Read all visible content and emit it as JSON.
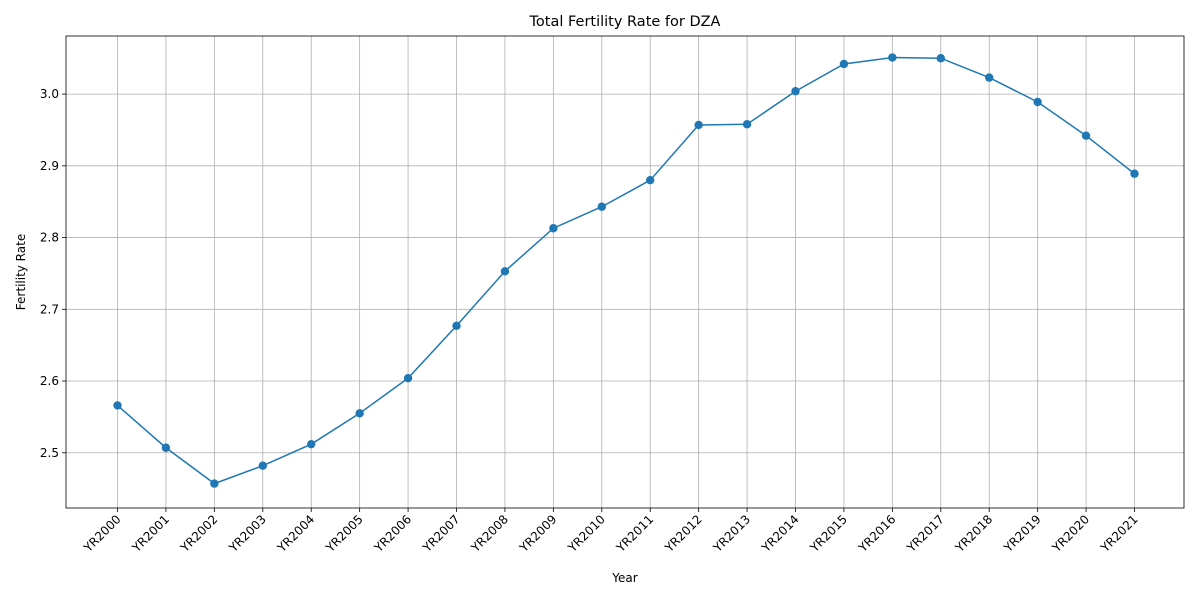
{
  "chart_data": {
    "type": "line",
    "title": "Total Fertility Rate for DZA",
    "xlabel": "Year",
    "ylabel": "Fertility Rate",
    "categories": [
      "YR2000",
      "YR2001",
      "YR2002",
      "YR2003",
      "YR2004",
      "YR2005",
      "YR2006",
      "YR2007",
      "YR2008",
      "YR2009",
      "YR2010",
      "YR2011",
      "YR2012",
      "YR2013",
      "YR2014",
      "YR2015",
      "YR2016",
      "YR2017",
      "YR2018",
      "YR2019",
      "YR2020",
      "YR2021"
    ],
    "series": [
      {
        "values": [
          2.566,
          2.507,
          2.457,
          2.482,
          2.512,
          2.555,
          2.604,
          2.677,
          2.753,
          2.813,
          2.843,
          2.88,
          2.957,
          2.958,
          3.004,
          3.042,
          3.051,
          3.05,
          3.023,
          2.989,
          2.942,
          2.889
        ],
        "color": "#1f77b4"
      }
    ],
    "ylim": [
      2.423,
      3.081
    ],
    "yticks": [
      "2.5",
      "2.6",
      "2.7",
      "2.8",
      "2.9",
      "3.0"
    ],
    "grid": true,
    "marker": "circle"
  }
}
